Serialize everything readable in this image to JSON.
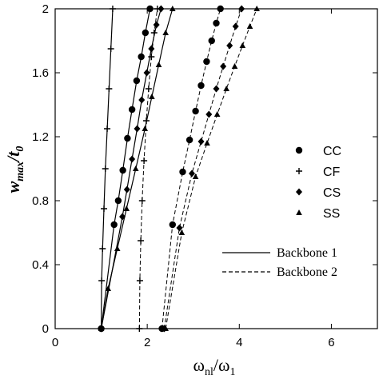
{
  "chart_data": {
    "type": "line",
    "xlabel": {
      "main": "ω",
      "sub": "nl",
      "slash": "/ω",
      "sub2": "1"
    },
    "ylabel": {
      "main": "w",
      "sub": "max",
      "slash": "/t",
      "sub2": "0"
    },
    "xlim": [
      0,
      7
    ],
    "ylim": [
      0,
      2
    ],
    "xticks": [
      0,
      2,
      4,
      6
    ],
    "yticks": [
      0,
      0.4,
      0.8,
      1.2,
      1.6,
      2
    ],
    "xtick_labels": [
      "0",
      "2",
      "4",
      "6"
    ],
    "ytick_labels": [
      "0",
      "0.4",
      "0.8",
      "1.2",
      "1.6",
      "2"
    ],
    "grid": false,
    "legend_markers": [
      {
        "label": "CC",
        "marker": "circle"
      },
      {
        "label": "CF",
        "marker": "plus"
      },
      {
        "label": "CS",
        "marker": "diamond"
      },
      {
        "label": "SS",
        "marker": "triangle"
      }
    ],
    "legend_lines": [
      {
        "label": "Backbone 1",
        "style": "solid"
      },
      {
        "label": "Backbone 2",
        "style": "dashed"
      }
    ],
    "series": [
      {
        "name": "CF",
        "backbone": 1,
        "marker": "plus",
        "x": [
          1.0,
          1.01,
          1.03,
          1.06,
          1.09,
          1.13,
          1.17,
          1.21,
          1.25
        ],
        "y": [
          0.0,
          0.3,
          0.5,
          0.75,
          1.0,
          1.25,
          1.5,
          1.75,
          2.0
        ]
      },
      {
        "name": "CC",
        "backbone": 1,
        "marker": "circle",
        "x": [
          1.0,
          1.28,
          1.37,
          1.47,
          1.57,
          1.67,
          1.77,
          1.87,
          1.96,
          2.06
        ],
        "y": [
          0.0,
          0.65,
          0.8,
          0.99,
          1.19,
          1.37,
          1.55,
          1.7,
          1.85,
          2.0
        ]
      },
      {
        "name": "CS",
        "backbone": 1,
        "marker": "diamond",
        "x": [
          1.0,
          1.46,
          1.56,
          1.67,
          1.78,
          1.88,
          1.99,
          2.09,
          2.2,
          2.3
        ],
        "y": [
          0.0,
          0.7,
          0.87,
          1.06,
          1.25,
          1.43,
          1.6,
          1.75,
          1.9,
          2.0
        ]
      },
      {
        "name": "SS",
        "backbone": 1,
        "marker": "triangle",
        "x": [
          1.0,
          1.15,
          1.35,
          1.55,
          1.75,
          1.95,
          2.1,
          2.25,
          2.4,
          2.55
        ],
        "y": [
          0.0,
          0.25,
          0.5,
          0.75,
          1.0,
          1.25,
          1.45,
          1.65,
          1.85,
          2.0
        ]
      },
      {
        "name": "CF",
        "backbone": 2,
        "marker": "plus",
        "x": [
          1.83,
          1.84,
          1.86,
          1.89,
          1.93,
          1.98,
          2.03,
          2.09,
          2.15,
          2.22
        ],
        "y": [
          0.0,
          0.3,
          0.55,
          0.8,
          1.05,
          1.3,
          1.5,
          1.7,
          1.85,
          2.0
        ]
      },
      {
        "name": "CC",
        "backbone": 2,
        "marker": "circle",
        "x": [
          2.32,
          2.55,
          2.77,
          2.92,
          3.05,
          3.17,
          3.29,
          3.4,
          3.5,
          3.59
        ],
        "y": [
          0.0,
          0.65,
          0.98,
          1.18,
          1.36,
          1.52,
          1.67,
          1.8,
          1.91,
          2.0
        ]
      },
      {
        "name": "CS",
        "backbone": 2,
        "marker": "diamond",
        "x": [
          2.37,
          2.7,
          2.97,
          3.17,
          3.34,
          3.5,
          3.65,
          3.79,
          3.92,
          4.05
        ],
        "y": [
          0.0,
          0.63,
          0.97,
          1.17,
          1.34,
          1.5,
          1.64,
          1.77,
          1.89,
          2.0
        ]
      },
      {
        "name": "SS",
        "backbone": 2,
        "marker": "triangle",
        "x": [
          2.4,
          2.75,
          3.05,
          3.3,
          3.52,
          3.72,
          3.9,
          4.07,
          4.23,
          4.38
        ],
        "y": [
          0.0,
          0.6,
          0.95,
          1.16,
          1.34,
          1.5,
          1.64,
          1.77,
          1.89,
          2.0
        ]
      }
    ]
  }
}
